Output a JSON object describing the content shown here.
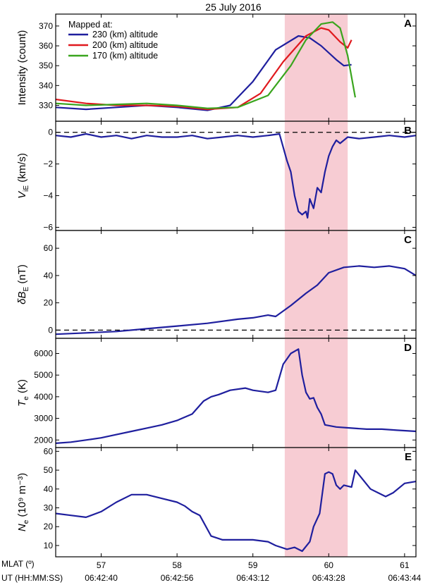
{
  "title": "25 July 2016",
  "colors": {
    "highlight": "#f7ccd3",
    "series_230": "#1f1f9e",
    "series_200": "#e0191e",
    "series_170": "#3aa51e",
    "measure": "#1f1f9e"
  },
  "x_axis": {
    "range": [
      56.4,
      61.15
    ],
    "highlight": [
      59.42,
      60.25
    ],
    "mlat_label": "MLAT (º)",
    "ut_label": "UT (HH:MM:SS)",
    "mlat_ticks": [
      57,
      58,
      59,
      60,
      61
    ],
    "mlat_tick_labels": [
      "57",
      "58",
      "59",
      "60",
      "61"
    ],
    "ut_tick_labels": [
      "06:42:40",
      "06:42:56",
      "06:43:12",
      "06:43:28",
      "06:43:44"
    ]
  },
  "chart_data": [
    {
      "panel": "A",
      "type": "line",
      "ylabel": "Intensity (count)",
      "ylim": [
        322,
        376
      ],
      "yticks": [
        330,
        340,
        350,
        360,
        370
      ],
      "legend_title": "Mapped at:",
      "legend_placement": "top-left",
      "series": [
        {
          "name": "230 (km) altitude",
          "x": [
            56.4,
            56.8,
            57.2,
            57.6,
            58.0,
            58.4,
            58.7,
            59.0,
            59.3,
            59.6,
            59.75,
            59.9,
            60.1,
            60.2,
            60.3
          ],
          "y": [
            329,
            328,
            329,
            330,
            329,
            327.5,
            330,
            342,
            358,
            365,
            364,
            360,
            353,
            350,
            350.5
          ]
        },
        {
          "name": "200 (km) altitude",
          "x": [
            56.4,
            56.8,
            57.2,
            57.6,
            58.0,
            58.4,
            58.8,
            59.1,
            59.4,
            59.7,
            59.9,
            60.0,
            60.15,
            60.25,
            60.3
          ],
          "y": [
            333,
            331,
            330,
            330,
            329.5,
            328,
            329,
            336,
            352,
            365,
            369,
            368,
            362,
            359,
            363
          ]
        },
        {
          "name": "170 (km) altitude",
          "x": [
            56.4,
            56.8,
            57.2,
            57.6,
            58.0,
            58.4,
            58.8,
            59.2,
            59.5,
            59.7,
            59.9,
            60.05,
            60.15,
            60.25,
            60.35
          ],
          "y": [
            331,
            330,
            330.5,
            331,
            330,
            328.5,
            329,
            335,
            350,
            363,
            371,
            372,
            369,
            355,
            334
          ]
        }
      ]
    },
    {
      "panel": "B",
      "type": "line",
      "ylabel": "V_iE (km/s)",
      "ylim": [
        -6.2,
        0.7
      ],
      "yticks": [
        -6,
        -4,
        -2,
        0
      ],
      "ytick_labels": [
        "−6",
        "−4",
        "−2",
        "0"
      ],
      "zero_line": true,
      "series": [
        {
          "x": [
            56.4,
            56.6,
            56.8,
            57.0,
            57.2,
            57.4,
            57.6,
            57.8,
            58.0,
            58.2,
            58.4,
            58.6,
            58.8,
            59.0,
            59.2,
            59.35,
            59.45,
            59.5,
            59.55,
            59.6,
            59.65,
            59.7,
            59.72,
            59.75,
            59.8,
            59.85,
            59.9,
            59.95,
            60.0,
            60.05,
            60.1,
            60.15,
            60.25,
            60.4,
            60.6,
            60.8,
            61.0,
            61.15
          ],
          "y": [
            -0.2,
            -0.3,
            -0.1,
            -0.3,
            -0.2,
            -0.4,
            -0.2,
            -0.3,
            -0.3,
            -0.2,
            -0.4,
            -0.3,
            -0.2,
            -0.3,
            -0.2,
            -0.1,
            -1.8,
            -2.5,
            -4.0,
            -5.0,
            -5.2,
            -5.0,
            -5.4,
            -4.2,
            -4.8,
            -3.5,
            -3.8,
            -2.5,
            -1.5,
            -0.9,
            -0.5,
            -0.7,
            -0.3,
            -0.4,
            -0.3,
            -0.2,
            -0.3,
            -0.2
          ]
        }
      ]
    },
    {
      "panel": "C",
      "type": "line",
      "ylabel": "δB_E (nT)",
      "ylim": [
        -6,
        73
      ],
      "yticks": [
        0,
        20,
        40,
        60
      ],
      "zero_line": true,
      "series": [
        {
          "x": [
            56.4,
            56.8,
            57.2,
            57.6,
            58.0,
            58.4,
            58.8,
            59.0,
            59.2,
            59.3,
            59.5,
            59.7,
            59.85,
            60.0,
            60.2,
            60.4,
            60.6,
            60.8,
            61.0,
            61.15
          ],
          "y": [
            -3,
            -2,
            -1,
            1,
            3,
            5,
            8,
            9,
            11,
            10,
            18,
            27,
            33,
            42,
            46,
            47,
            46,
            47,
            45,
            40
          ]
        }
      ]
    },
    {
      "panel": "D",
      "type": "line",
      "ylabel": "T_e (K)",
      "ylim": [
        1650,
        6700
      ],
      "yticks": [
        2000,
        3000,
        4000,
        5000,
        6000
      ],
      "series": [
        {
          "x": [
            56.4,
            56.6,
            56.8,
            57.0,
            57.2,
            57.4,
            57.6,
            57.8,
            58.0,
            58.2,
            58.35,
            58.45,
            58.55,
            58.7,
            58.9,
            59.0,
            59.2,
            59.3,
            59.4,
            59.5,
            59.6,
            59.65,
            59.7,
            59.75,
            59.8,
            59.85,
            59.9,
            59.95,
            60.1,
            60.3,
            60.5,
            60.7,
            60.9,
            61.15
          ],
          "y": [
            1850,
            1900,
            2000,
            2100,
            2250,
            2400,
            2550,
            2700,
            2900,
            3200,
            3800,
            4000,
            4100,
            4300,
            4400,
            4300,
            4200,
            4300,
            5500,
            6000,
            6200,
            5000,
            4200,
            3900,
            3950,
            3500,
            3200,
            2700,
            2600,
            2550,
            2500,
            2500,
            2450,
            2400
          ]
        }
      ]
    },
    {
      "panel": "E",
      "type": "line",
      "ylabel": "N_e (10⁹ m⁻³)",
      "ylim": [
        4,
        62
      ],
      "yticks": [
        10,
        20,
        30,
        40,
        50,
        60
      ],
      "series": [
        {
          "x": [
            56.4,
            56.6,
            56.8,
            57.0,
            57.2,
            57.4,
            57.6,
            57.8,
            58.0,
            58.1,
            58.2,
            58.3,
            58.45,
            58.6,
            58.8,
            59.0,
            59.2,
            59.3,
            59.45,
            59.55,
            59.65,
            59.75,
            59.8,
            59.88,
            59.95,
            60.0,
            60.05,
            60.1,
            60.15,
            60.2,
            60.3,
            60.35,
            60.45,
            60.55,
            60.65,
            60.75,
            60.85,
            61.0,
            61.15
          ],
          "y": [
            27,
            26,
            25,
            28,
            33,
            37,
            37,
            35,
            33,
            31,
            28,
            26,
            15,
            13,
            13,
            13,
            12,
            10,
            8,
            9,
            7,
            12,
            20,
            27,
            48,
            49,
            48,
            42,
            40,
            42,
            41,
            50,
            45,
            40,
            38,
            36,
            38,
            43,
            44
          ]
        }
      ]
    }
  ]
}
